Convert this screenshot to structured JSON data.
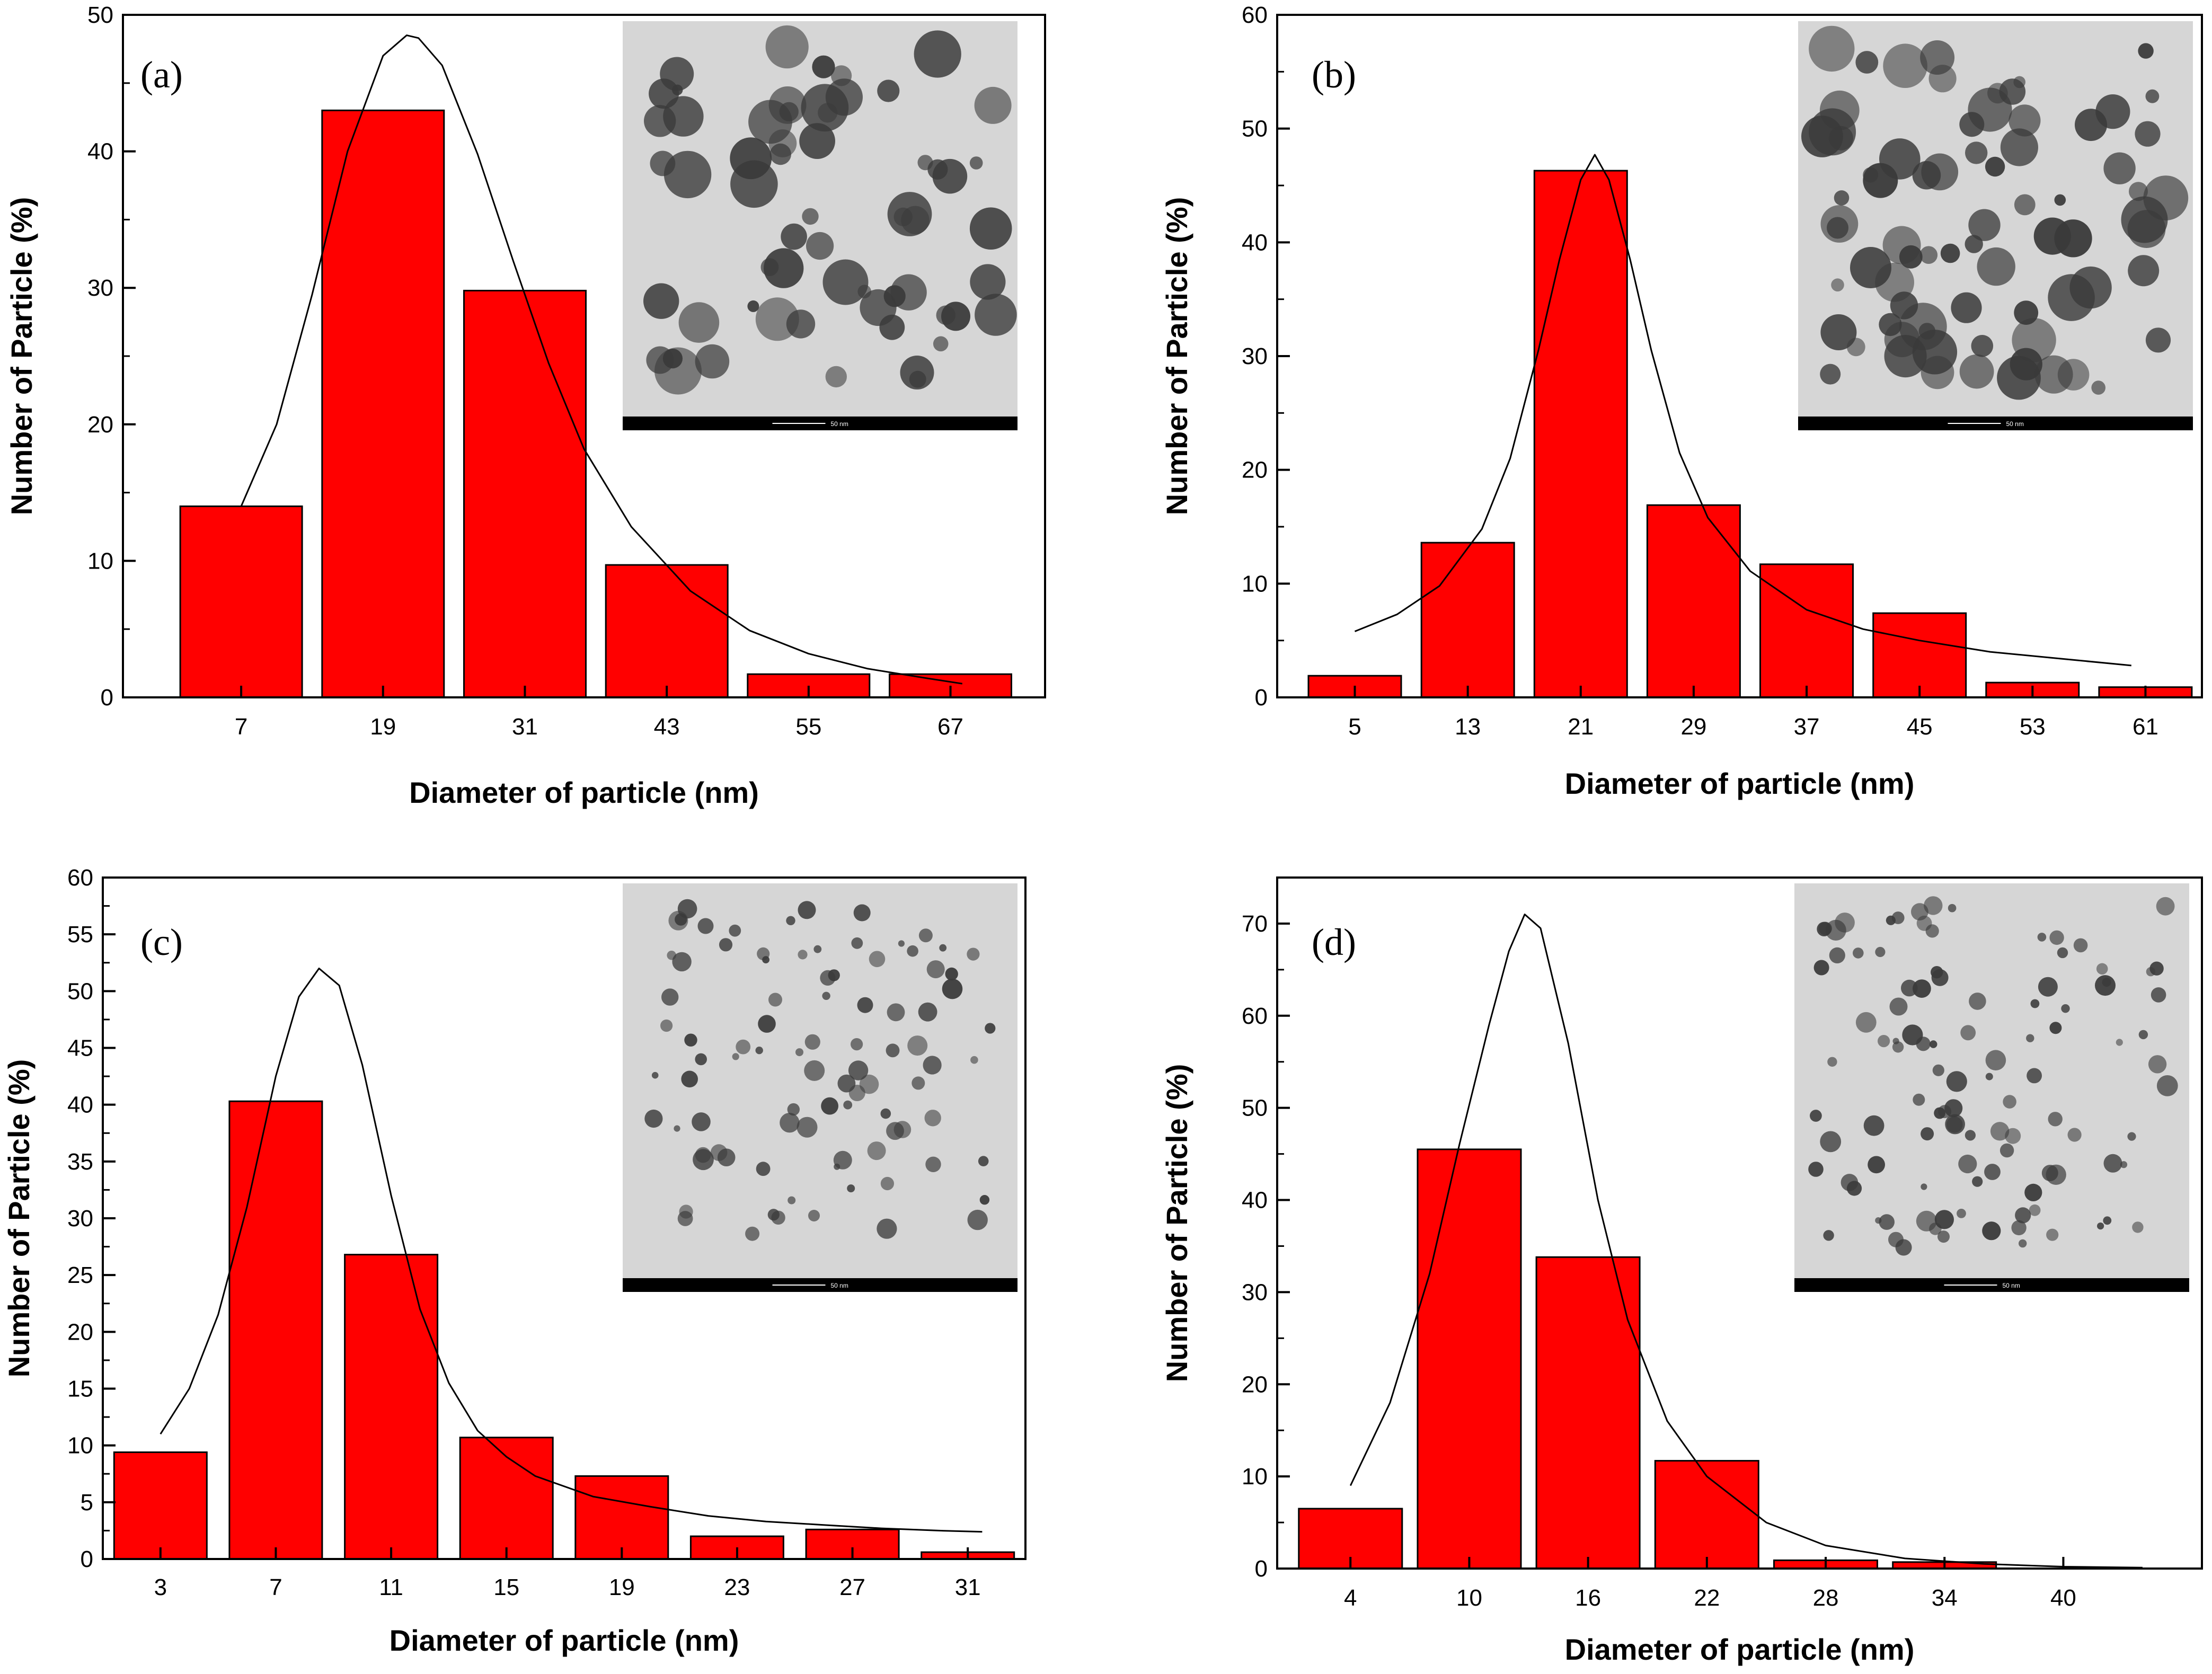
{
  "colors": {
    "bar_fill": "#ff0000",
    "bar_stroke": "#000000",
    "curve": "#000000",
    "tem_background": "#d6d6d6",
    "tem_particle": "#3a3a3a",
    "scale_bar": "#000000"
  },
  "chart_data": [
    {
      "id": "a",
      "type": "bar",
      "panel_label": "(a)",
      "xlabel": "Diameter of particle (nm)",
      "ylabel": "Number of Particle (%)",
      "categories": [
        "7",
        "19",
        "31",
        "43",
        "55",
        "67"
      ],
      "x": [
        7,
        19,
        31,
        43,
        55,
        67
      ],
      "values": [
        14,
        43,
        29.8,
        9.7,
        1.7,
        1.7
      ],
      "xlim": [
        -3,
        75
      ],
      "ylim": [
        0,
        50
      ],
      "yticks": [
        0,
        10,
        20,
        30,
        40,
        50
      ],
      "fit_curve": {
        "type": "log-normal",
        "x": [
          7,
          10,
          13,
          16,
          19,
          21,
          22,
          24,
          27,
          30,
          33,
          36,
          40,
          45,
          50,
          55,
          60,
          65,
          68
        ],
        "y": [
          14,
          20,
          29.5,
          40,
          47,
          48.5,
          48.3,
          46.3,
          39.8,
          32,
          24.5,
          18.2,
          12.5,
          7.8,
          4.9,
          3.2,
          2.1,
          1.4,
          1
        ]
      },
      "inset_caption": "50 nm"
    },
    {
      "id": "b",
      "type": "bar",
      "panel_label": "(b)",
      "xlabel": "Diameter of particle (nm)",
      "ylabel": "Number of Particle (%)",
      "categories": [
        "5",
        "13",
        "21",
        "29",
        "37",
        "45",
        "53",
        "61"
      ],
      "x": [
        5,
        13,
        21,
        29,
        37,
        45,
        53,
        61
      ],
      "values": [
        1.9,
        13.6,
        46.3,
        16.9,
        11.7,
        7.4,
        1.3,
        0.9
      ],
      "xlim": [
        -0.5,
        65
      ],
      "ylim": [
        0,
        60
      ],
      "yticks": [
        0,
        10,
        20,
        30,
        40,
        50,
        60
      ],
      "fit_curve": {
        "type": "lorentzian",
        "x": [
          5,
          8,
          11,
          14,
          16,
          18,
          19.5,
          21,
          22,
          23,
          24.5,
          26,
          28,
          30,
          33,
          37,
          41,
          45,
          50,
          55,
          60
        ],
        "y": [
          5.8,
          7.3,
          9.8,
          14.8,
          21,
          30.5,
          38.5,
          45.5,
          47.7,
          45.5,
          38.5,
          30.5,
          21.5,
          15.8,
          11.1,
          7.7,
          6,
          5,
          4,
          3.4,
          2.8
        ]
      },
      "inset_caption": "50 nm"
    },
    {
      "id": "c",
      "type": "bar",
      "panel_label": "(c)",
      "xlabel": "Diameter of particle (nm)",
      "ylabel": "Number of Particle (%)",
      "categories": [
        "3",
        "7",
        "11",
        "15",
        "19",
        "23",
        "27",
        "31"
      ],
      "x": [
        3,
        7,
        11,
        15,
        19,
        23,
        27,
        31
      ],
      "values": [
        9.4,
        40.3,
        26.8,
        10.7,
        7.3,
        2,
        2.6,
        0.6
      ],
      "xlim": [
        1,
        33
      ],
      "ylim": [
        0,
        60
      ],
      "yticks": [
        0,
        5,
        10,
        15,
        20,
        25,
        30,
        35,
        40,
        45,
        50,
        55,
        60
      ],
      "fit_curve": {
        "type": "lorentzian",
        "x": [
          3,
          4,
          5,
          6,
          7,
          7.8,
          8.5,
          9.2,
          10,
          11,
          12,
          13,
          14,
          15,
          16,
          18,
          20,
          22,
          24,
          26,
          28,
          30,
          31.5
        ],
        "y": [
          11,
          15,
          21.5,
          31,
          42.5,
          49.5,
          52,
          50.5,
          43.5,
          32,
          22,
          15.5,
          11.3,
          9,
          7.3,
          5.5,
          4.6,
          3.8,
          3.3,
          3,
          2.7,
          2.5,
          2.4
        ]
      },
      "inset_caption": "50 nm"
    },
    {
      "id": "d",
      "type": "bar",
      "panel_label": "(d)",
      "xlabel": "Diameter of particle (nm)",
      "ylabel": "Number of Particle (%)",
      "categories": [
        "4",
        "10",
        "16",
        "22",
        "28",
        "34",
        "40"
      ],
      "x": [
        4,
        10,
        16,
        22,
        28,
        34,
        40
      ],
      "values": [
        6.5,
        45.5,
        33.8,
        11.7,
        0.9,
        0.7,
        0
      ],
      "xlim": [
        0.3,
        47
      ],
      "ylim": [
        0,
        75
      ],
      "yticks": [
        0,
        10,
        20,
        30,
        40,
        50,
        60,
        70
      ],
      "fit_curve": {
        "type": "gaussian",
        "x": [
          4,
          6,
          8,
          9.5,
          11,
          12,
          12.8,
          13.6,
          15,
          16.5,
          18,
          20,
          22,
          25,
          28,
          32,
          36,
          40,
          44
        ],
        "y": [
          9,
          18,
          32,
          46,
          59,
          67,
          71,
          69.5,
          57,
          40,
          27,
          16,
          10,
          5,
          2.5,
          1.1,
          0.5,
          0.2,
          0.1
        ]
      },
      "inset_caption": "50 nm"
    }
  ]
}
